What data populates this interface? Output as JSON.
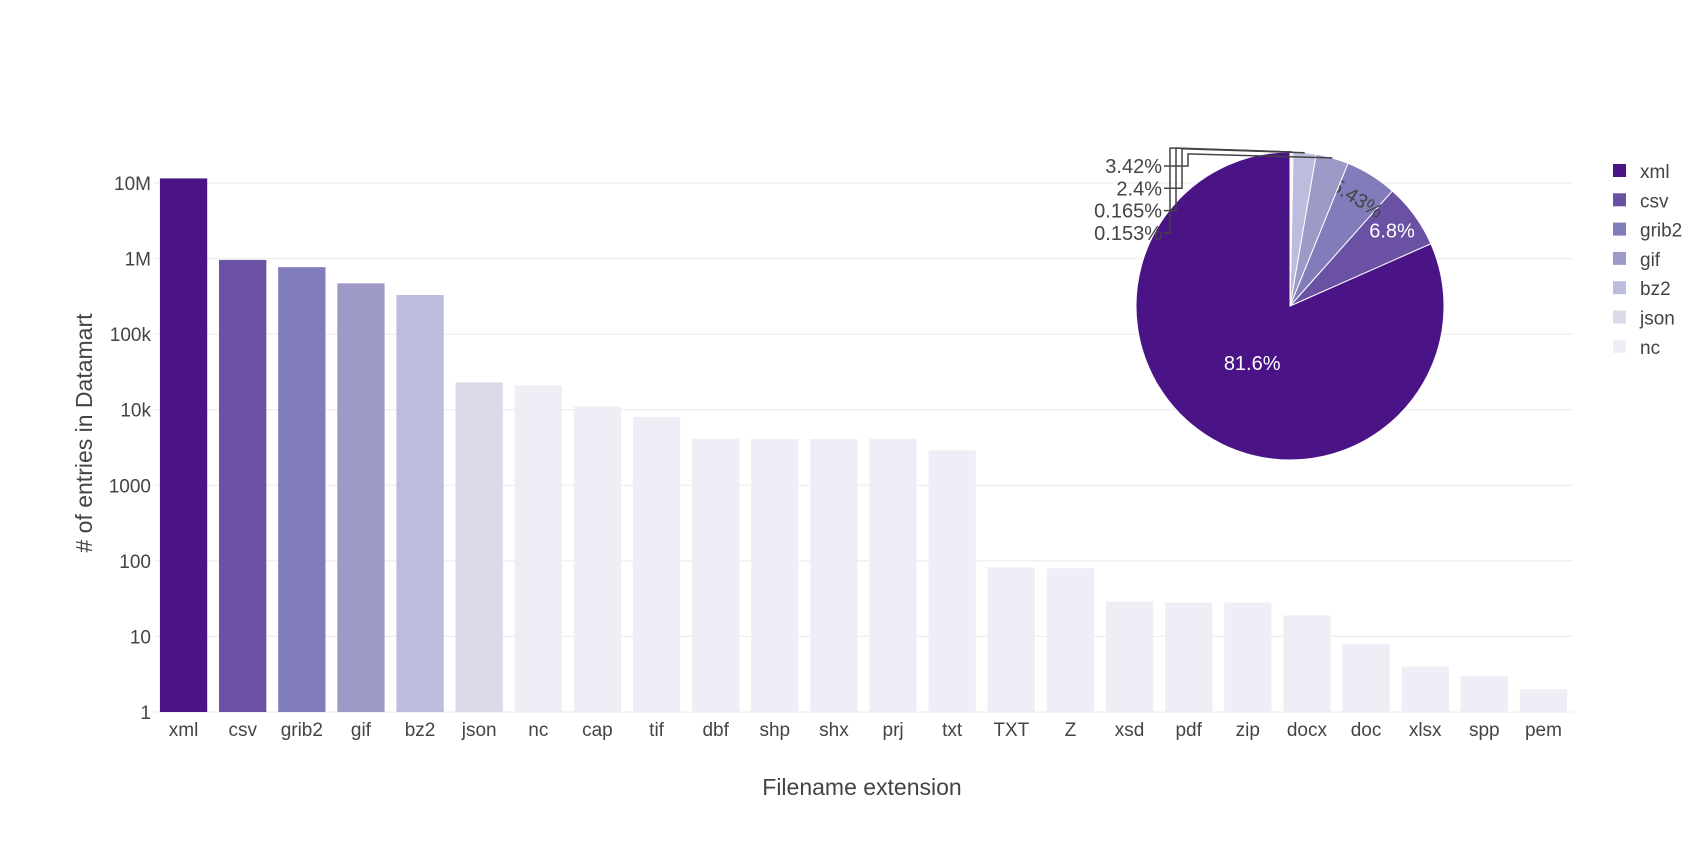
{
  "chart_data": [
    {
      "type": "bar",
      "xlabel": "Filename extension",
      "ylabel": "# of entries in Datamart",
      "yscale": "log",
      "ylim": [
        1,
        10000000
      ],
      "yticks": [
        {
          "value": 1,
          "label": "1"
        },
        {
          "value": 10,
          "label": "10"
        },
        {
          "value": 100,
          "label": "100"
        },
        {
          "value": 1000,
          "label": "1000"
        },
        {
          "value": 10000,
          "label": "10k"
        },
        {
          "value": 100000,
          "label": "100k"
        },
        {
          "value": 1000000,
          "label": "1M"
        },
        {
          "value": 10000000,
          "label": "10M"
        }
      ],
      "grid": true,
      "categories": [
        "xml",
        "csv",
        "grib2",
        "gif",
        "bz2",
        "json",
        "nc",
        "cap",
        "tif",
        "dbf",
        "shp",
        "shx",
        "prj",
        "txt",
        "TXT",
        "Z",
        "xsd",
        "pdf",
        "zip",
        "docx",
        "doc",
        "xlsx",
        "spp",
        "pem"
      ],
      "values": [
        11500000,
        960000,
        770000,
        470000,
        330000,
        23000,
        21000,
        11000,
        8000,
        4100,
        4100,
        4100,
        4100,
        2900,
        82,
        80,
        29,
        28,
        28,
        19,
        8,
        4,
        3,
        2
      ],
      "colors": [
        "#4a1486",
        "#6a51a3",
        "#807dba",
        "#9e9ac8",
        "#bcbddc",
        "#dadaeb",
        "#efedf5",
        "#efedf5",
        "#efedf5",
        "#efedf5",
        "#efedf5",
        "#efedf5",
        "#efedf5",
        "#efedf5",
        "#efedf5",
        "#efedf5",
        "#efedf5",
        "#efedf5",
        "#efedf5",
        "#efedf5",
        "#efedf5",
        "#efedf5",
        "#efedf5",
        "#efedf5"
      ]
    },
    {
      "type": "pie",
      "slices": [
        {
          "name": "xml",
          "value": 81.6,
          "label": "81.6%",
          "color": "#4a1486",
          "label_pos": "inside"
        },
        {
          "name": "csv",
          "value": 6.8,
          "label": "6.8%",
          "color": "#6a51a3",
          "label_pos": "inside"
        },
        {
          "name": "grib2",
          "value": 5.43,
          "label": "5.43%",
          "color": "#807dba",
          "label_pos": "inside"
        },
        {
          "name": "gif",
          "value": 3.42,
          "label": "3.42%",
          "color": "#9e9ac8",
          "label_pos": "outside"
        },
        {
          "name": "bz2",
          "value": 2.4,
          "label": "2.4%",
          "color": "#bcbddc",
          "label_pos": "outside"
        },
        {
          "name": "json",
          "value": 0.165,
          "label": "0.165%",
          "color": "#dadaeb",
          "label_pos": "outside"
        },
        {
          "name": "nc",
          "value": 0.153,
          "label": "0.153%",
          "color": "#efedf5",
          "label_pos": "outside"
        }
      ],
      "direction": "counterclockwise",
      "legend_position": "right",
      "legend": [
        "xml",
        "csv",
        "grib2",
        "gif",
        "bz2",
        "json",
        "nc"
      ]
    }
  ]
}
